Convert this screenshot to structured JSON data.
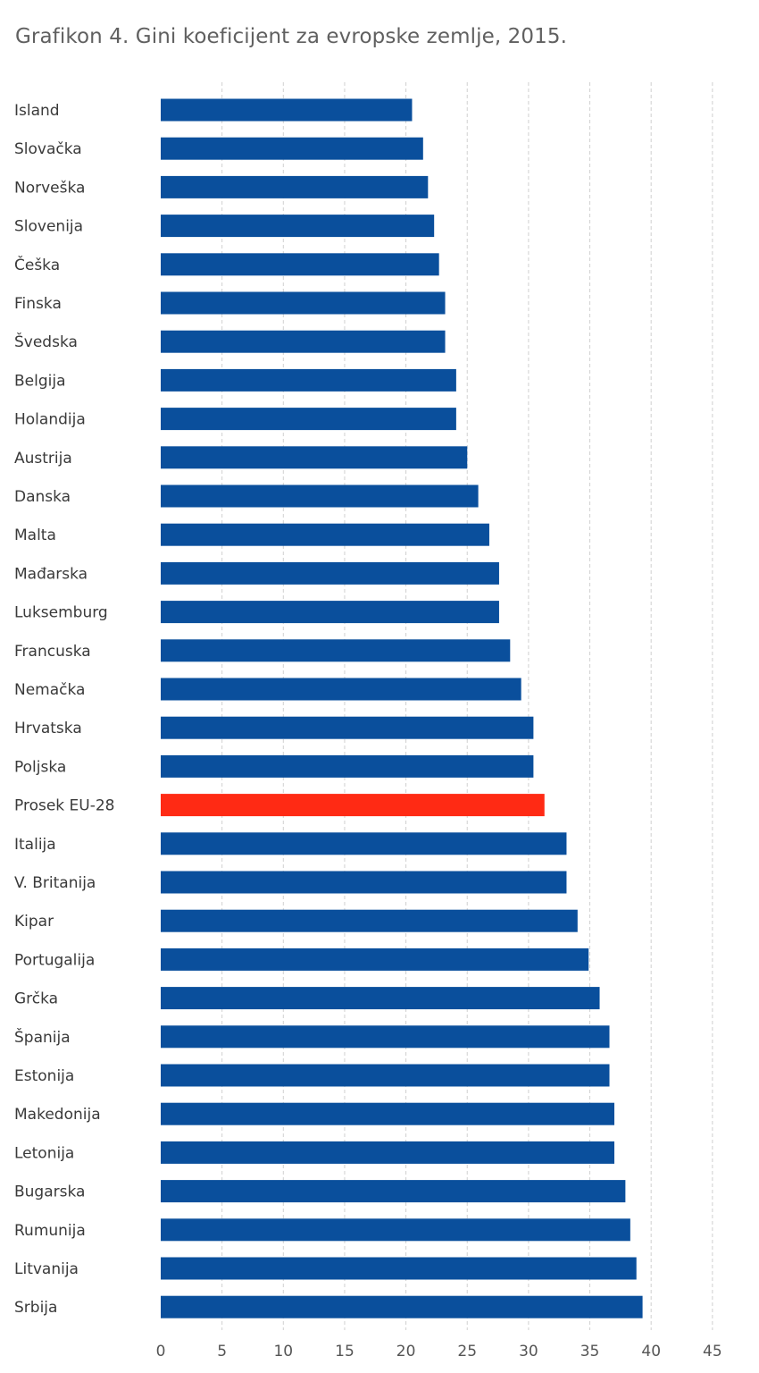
{
  "title": "Grafikon 4. Gini koeficijent za evropske zemlje, 2015.",
  "colors": {
    "bar": "#0a4f9c",
    "highlight": "#ff2a14"
  },
  "chart_data": {
    "type": "bar",
    "orientation": "horizontal",
    "title": "Grafikon 4. Gini koeficijent za evropske zemlje, 2015.",
    "xlabel": "",
    "ylabel": "",
    "xlim": [
      0,
      45
    ],
    "xticks": [
      0,
      5,
      10,
      15,
      20,
      25,
      30,
      35,
      40,
      45
    ],
    "grid": true,
    "highlight_category": "Prosek EU-28",
    "categories": [
      "Island",
      "Slovačka",
      "Norveška",
      "Slovenija",
      "Češka",
      "Finska",
      "Švedska",
      "Belgija",
      "Holandija",
      "Austrija",
      "Danska",
      "Malta",
      "Mađarska",
      "Luksemburg",
      "Francuska",
      "Nemačka",
      "Hrvatska",
      "Poljska",
      "Prosek EU-28",
      "Italija",
      "V. Britanija",
      "Kipar",
      "Portugalija",
      "Grčka",
      "Španija",
      "Estonija",
      "Makedonija",
      "Letonija",
      "Bugarska",
      "Rumunija",
      "Litvanija",
      "Srbija"
    ],
    "values": [
      20.5,
      21.4,
      21.8,
      22.3,
      22.7,
      23.2,
      23.2,
      24.1,
      24.1,
      25.0,
      25.9,
      26.8,
      27.6,
      27.6,
      28.5,
      29.4,
      30.4,
      30.4,
      31.3,
      33.1,
      33.1,
      34.0,
      34.9,
      35.8,
      36.6,
      36.6,
      37.0,
      37.0,
      37.9,
      38.3,
      38.8,
      39.3
    ]
  }
}
